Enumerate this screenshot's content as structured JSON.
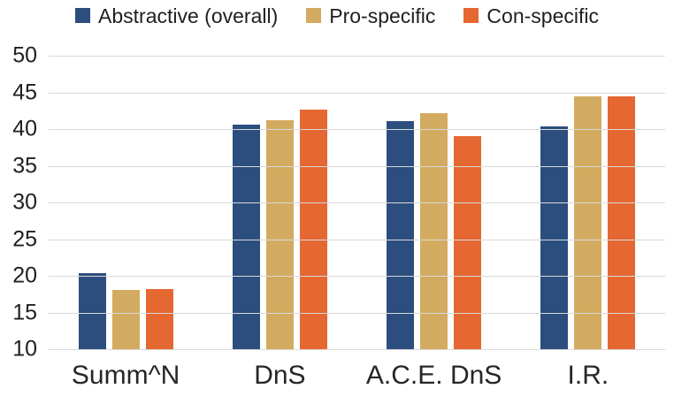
{
  "chart_data": {
    "type": "bar",
    "title": "",
    "xlabel": "",
    "ylabel": "",
    "categories": [
      "Summ^N",
      "DnS",
      "A.C.E. DnS",
      "I.R."
    ],
    "series": [
      {
        "name": "Abstractive (overall)",
        "color": "#2C4E7E",
        "values": [
          20.4,
          40.6,
          41.1,
          40.4
        ]
      },
      {
        "name": "Pro-specific",
        "color": "#D3AB60",
        "values": [
          18.1,
          41.2,
          42.2,
          44.5
        ]
      },
      {
        "name": "Con-specific",
        "color": "#E56731",
        "values": [
          18.2,
          42.6,
          39.0,
          44.4
        ]
      }
    ],
    "ylim": [
      10,
      50
    ],
    "yticks": [
      50,
      45,
      40,
      35,
      30,
      25,
      20,
      15,
      10
    ],
    "grid": "horizontal",
    "gridline_color": "#D9D9D9",
    "legend_position": "top"
  }
}
